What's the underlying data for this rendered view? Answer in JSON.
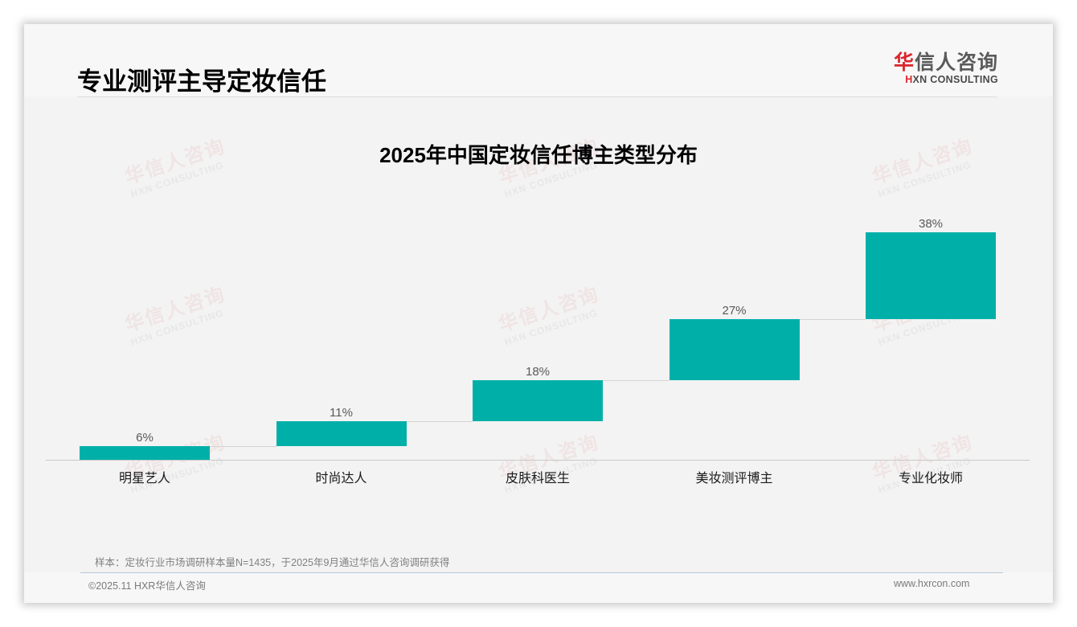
{
  "header": {
    "page_title": "专业测评主导定妆信任",
    "logo": {
      "cn_accent": "华",
      "cn_rest": "信人咨询",
      "en_accent": "H",
      "en_rest": "XN CONSULTING"
    }
  },
  "chart_data": {
    "type": "bar",
    "subtype": "waterfall",
    "title": "2025年中国定妆信任博主类型分布",
    "categories": [
      "明星艺人",
      "时尚达人",
      "皮肤科医生",
      "美妆测评博主",
      "专业化妆师"
    ],
    "values": [
      6,
      11,
      18,
      27,
      38
    ],
    "value_labels": [
      "6%",
      "11%",
      "18%",
      "27%",
      "38%"
    ],
    "cumulative_start": [
      0,
      6,
      17,
      35,
      62
    ],
    "cumulative_end": [
      6,
      17,
      35,
      62,
      100
    ],
    "unit": "%",
    "xlabel": "",
    "ylabel": "",
    "ylim": [
      0,
      100
    ],
    "grid": false,
    "legend": null,
    "bar_color": "#00b0a8"
  },
  "watermark": {
    "cn": "华信人咨询",
    "en": "HXN CONSULTING"
  },
  "footer": {
    "note": "样本：定妆行业市场调研样本量N=1435，于2025年9月通过华信人咨询调研获得",
    "copyright": "©2025.11 HXR华信人咨询",
    "website": "www.hxrcon.com"
  }
}
